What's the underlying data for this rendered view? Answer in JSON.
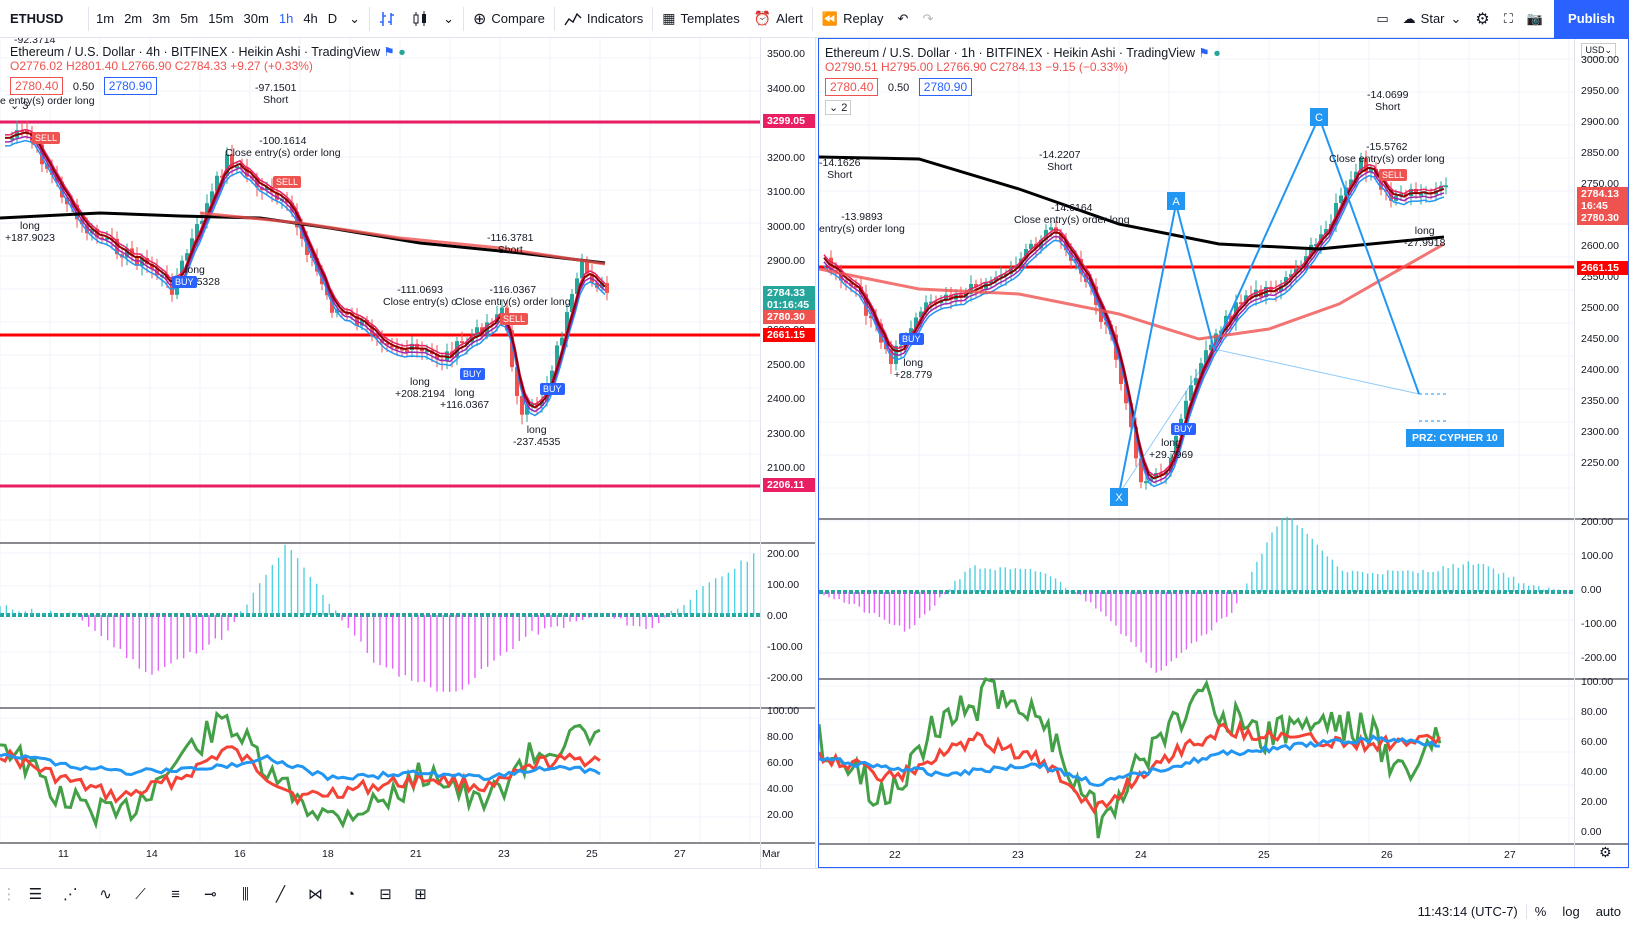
{
  "toolbar": {
    "symbol": "ETHUSD",
    "timeframes": [
      "1m",
      "2m",
      "3m",
      "5m",
      "15m",
      "30m",
      "1h",
      "4h",
      "D"
    ],
    "active_timeframe": "1h",
    "compare": "Compare",
    "indicators": "Indicators",
    "templates": "Templates",
    "alert": "Alert",
    "replay": "Replay",
    "star": "Star",
    "publish": "Publish"
  },
  "left_chart": {
    "title": "Ethereum / U.S. Dollar · 4h · BITFINEX · Heikin Ashi · TradingView",
    "ohlc": "O2776.02  H2801.40  L2766.90  C2784.33  +9.27 (+0.33%)",
    "bid": "2780.40",
    "spread": "0.50",
    "ask": "2780.90",
    "collapse_count": "3",
    "price_axis": [
      "3500.00",
      "3400.00",
      "3300.00",
      "3200.00",
      "3100.00",
      "3000.00",
      "2900.00",
      "2800.00",
      "2600.00",
      "2500.00",
      "2400.00",
      "2300.00",
      "2100.00"
    ],
    "price_tags": [
      {
        "text": "3299.05",
        "color": "#e91e63"
      },
      {
        "text": "2784.33",
        "color": "#26a69a"
      },
      {
        "text": "01:16:45",
        "color": "#26a69a"
      },
      {
        "text": "2780.30",
        "color": "#ef5350"
      },
      {
        "text": "2661.15",
        "color": "#ff0000"
      },
      {
        "text": "2206.11",
        "color": "#e91e63"
      }
    ],
    "macd_axis": [
      "200.00",
      "100.00",
      "0.00",
      "-100.00",
      "-200.00"
    ],
    "rsi_axis": [
      "100.00",
      "80.00",
      "60.00",
      "40.00",
      "20.00"
    ],
    "time_axis": [
      "11",
      "14",
      "16",
      "18",
      "21",
      "23",
      "25",
      "27",
      "Mar"
    ],
    "annotations": [
      {
        "text": "-92.3714"
      },
      {
        "text": "-97.1501\nShort"
      },
      {
        "text": "-100.1614\nClose entry(s) order long"
      },
      {
        "text": "long\n+187.9023"
      },
      {
        "text": "long\n+192.5328"
      },
      {
        "text": "-116.3781\nShort"
      },
      {
        "text": "-111.0693\nClose entry(s) o"
      },
      {
        "text": "-116.0367\nClose entry(s) order long"
      },
      {
        "text": "long\n+208.2194"
      },
      {
        "text": "long\n+116.0367"
      },
      {
        "text": "long\n-237.4535"
      },
      {
        "text": "e entry(s) order long"
      }
    ],
    "signals": [
      "SELL",
      "SELL",
      "BUY",
      "BUY",
      "SELL",
      "BUY"
    ]
  },
  "right_chart": {
    "title": "Ethereum / U.S. Dollar · 1h · BITFINEX · Heikin Ashi · TradingView",
    "ohlc": "O2790.51  H2795.00  L2766.90  C2784.13  −9.15 (−0.33%)",
    "bid": "2780.40",
    "spread": "0.50",
    "ask": "2780.90",
    "collapse_count": "2",
    "currency": "USD",
    "price_axis": [
      "3000.00",
      "2950.00",
      "2900.00",
      "2850.00",
      "2750.00",
      "2700.00",
      "2600.00",
      "2550.00",
      "2500.00",
      "2450.00",
      "2400.00",
      "2350.00",
      "2300.00",
      "2250.00"
    ],
    "price_tags": [
      {
        "text": "2784.13",
        "color": "#ef5350"
      },
      {
        "text": "16:45",
        "color": "#ef5350"
      },
      {
        "text": "2780.30",
        "color": "#ef5350"
      },
      {
        "text": "2661.15",
        "color": "#ff0000"
      }
    ],
    "macd_axis": [
      "200.00",
      "100.00",
      "0.00",
      "-100.00",
      "-200.00"
    ],
    "rsi_axis": [
      "100.00",
      "80.00",
      "60.00",
      "40.00",
      "20.00",
      "0.00"
    ],
    "time_axis": [
      "22",
      "23",
      "24",
      "25",
      "26",
      "27"
    ],
    "pattern_points": [
      "X",
      "A",
      "C"
    ],
    "prz_label": "PRZ: CYPHER 10",
    "annotations": [
      {
        "text": "-14.1626\nShort"
      },
      {
        "text": "-13.9893\nentry(s) order long"
      },
      {
        "text": "-14.2207\nShort"
      },
      {
        "text": "-14.6164\nClose entry(s) order long"
      },
      {
        "text": "-14.0699\nShort"
      },
      {
        "text": "-15.5762\nClose entry(s) order long"
      },
      {
        "text": "long\n+28.779"
      },
      {
        "text": "long\n+29.7969"
      },
      {
        "text": "long\n-27.9918"
      }
    ],
    "signals": [
      "BUY",
      "BUY",
      "SELL"
    ]
  },
  "bottom": {
    "clock": "11:43:14 (UTC-7)",
    "percent": "%",
    "log": "log",
    "auto": "auto"
  }
}
